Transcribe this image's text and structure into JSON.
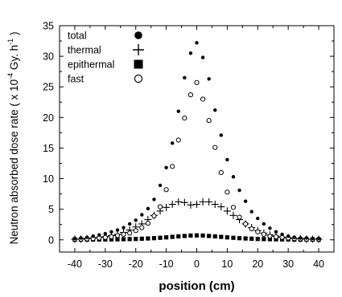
{
  "chart_data": {
    "type": "scatter",
    "xlabel": "position (cm)",
    "ylabel": {
      "prefix": "Neutron absorbed dose rate ( x 10",
      "exponent": "-4",
      "middle": " Gy. h",
      "exponent2": "-1",
      "suffix": " )"
    },
    "xlim": [
      -45,
      45
    ],
    "ylim": [
      -2,
      35
    ],
    "x_ticks": [
      "-40",
      "-30",
      "-20",
      "-10",
      "0",
      "10",
      "20",
      "30",
      "40"
    ],
    "y_ticks": [
      "0",
      "5",
      "10",
      "15",
      "20",
      "25",
      "30",
      "35"
    ],
    "grid": false,
    "legend_position": "top-left",
    "series": [
      {
        "name": "total",
        "marker": "filled-circle",
        "x": [
          -40,
          -38,
          -36,
          -34,
          -32,
          -30,
          -28,
          -26,
          -24,
          -22,
          -20,
          -18,
          -16,
          -14,
          -12,
          -10,
          -8,
          -6,
          -4,
          -2,
          0,
          2,
          4,
          6,
          8,
          10,
          12,
          14,
          16,
          18,
          20,
          22,
          24,
          26,
          28,
          30,
          32,
          34,
          36,
          38,
          40
        ],
        "y": [
          0.2,
          0.3,
          0.4,
          0.6,
          0.8,
          1.0,
          1.3,
          1.6,
          2.0,
          2.6,
          3.2,
          4.1,
          5.1,
          6.6,
          8.9,
          11.8,
          15.8,
          21.0,
          26.5,
          30.5,
          32.2,
          29.8,
          26.3,
          21.2,
          17.1,
          13.1,
          10.3,
          8.1,
          6.3,
          4.6,
          3.5,
          2.6,
          1.9,
          1.3,
          0.9,
          0.6,
          0.4,
          0.3,
          0.3,
          0.2,
          0.2
        ]
      },
      {
        "name": "thermal",
        "marker": "plus",
        "x": [
          -40,
          -38,
          -36,
          -34,
          -32,
          -30,
          -28,
          -26,
          -24,
          -22,
          -20,
          -18,
          -16,
          -14,
          -12,
          -10,
          -8,
          -6,
          -4,
          -2,
          0,
          2,
          4,
          6,
          8,
          10,
          12,
          14,
          16,
          18,
          20,
          22,
          24,
          26,
          28,
          30,
          32,
          34,
          36,
          38,
          40
        ],
        "y": [
          0.1,
          0.1,
          0.2,
          0.3,
          0.4,
          0.5,
          0.7,
          0.9,
          1.2,
          1.6,
          2.1,
          2.6,
          3.3,
          4.0,
          4.7,
          5.3,
          5.8,
          6.2,
          6.1,
          5.7,
          5.8,
          6.2,
          6.2,
          5.8,
          5.4,
          4.7,
          4.0,
          3.3,
          2.6,
          2.0,
          1.5,
          1.1,
          0.8,
          0.6,
          0.4,
          0.3,
          0.2,
          0.2,
          0.1,
          0.1,
          0.1
        ]
      },
      {
        "name": "epithermal",
        "marker": "filled-square",
        "x": [
          -40,
          -38,
          -36,
          -34,
          -32,
          -30,
          -28,
          -26,
          -24,
          -22,
          -20,
          -18,
          -16,
          -14,
          -12,
          -10,
          -8,
          -6,
          -4,
          -2,
          0,
          2,
          4,
          6,
          8,
          10,
          12,
          14,
          16,
          18,
          20,
          22,
          24,
          26,
          28,
          30,
          32,
          34,
          36,
          38,
          40
        ],
        "y": [
          0.02,
          0.03,
          0.03,
          0.04,
          0.05,
          0.06,
          0.07,
          0.08,
          0.1,
          0.12,
          0.14,
          0.18,
          0.22,
          0.27,
          0.33,
          0.4,
          0.48,
          0.56,
          0.63,
          0.7,
          0.72,
          0.7,
          0.63,
          0.56,
          0.48,
          0.4,
          0.33,
          0.27,
          0.22,
          0.18,
          0.14,
          0.12,
          0.1,
          0.08,
          0.07,
          0.06,
          0.05,
          0.04,
          0.03,
          0.03,
          0.02
        ]
      },
      {
        "name": "fast",
        "marker": "open-circle",
        "x": [
          -40,
          -38,
          -36,
          -34,
          -32,
          -30,
          -28,
          -26,
          -24,
          -22,
          -20,
          -18,
          -16,
          -14,
          -12,
          -10,
          -8,
          -6,
          -4,
          -2,
          0,
          2,
          4,
          6,
          8,
          10,
          12,
          14,
          16,
          18,
          20,
          22,
          24,
          26,
          28,
          30,
          32,
          34,
          36,
          38,
          40
        ],
        "y": [
          0.1,
          0.1,
          0.15,
          0.2,
          0.3,
          0.4,
          0.5,
          0.7,
          0.9,
          1.1,
          1.5,
          2.0,
          2.7,
          3.9,
          5.4,
          8.2,
          12.0,
          16.3,
          19.9,
          23.7,
          25.7,
          23.0,
          19.5,
          15.1,
          11.0,
          7.8,
          5.3,
          3.7,
          2.6,
          1.8,
          1.3,
          0.9,
          0.6,
          0.5,
          0.4,
          0.3,
          0.2,
          0.15,
          0.1,
          0.1,
          0.1
        ]
      }
    ]
  }
}
